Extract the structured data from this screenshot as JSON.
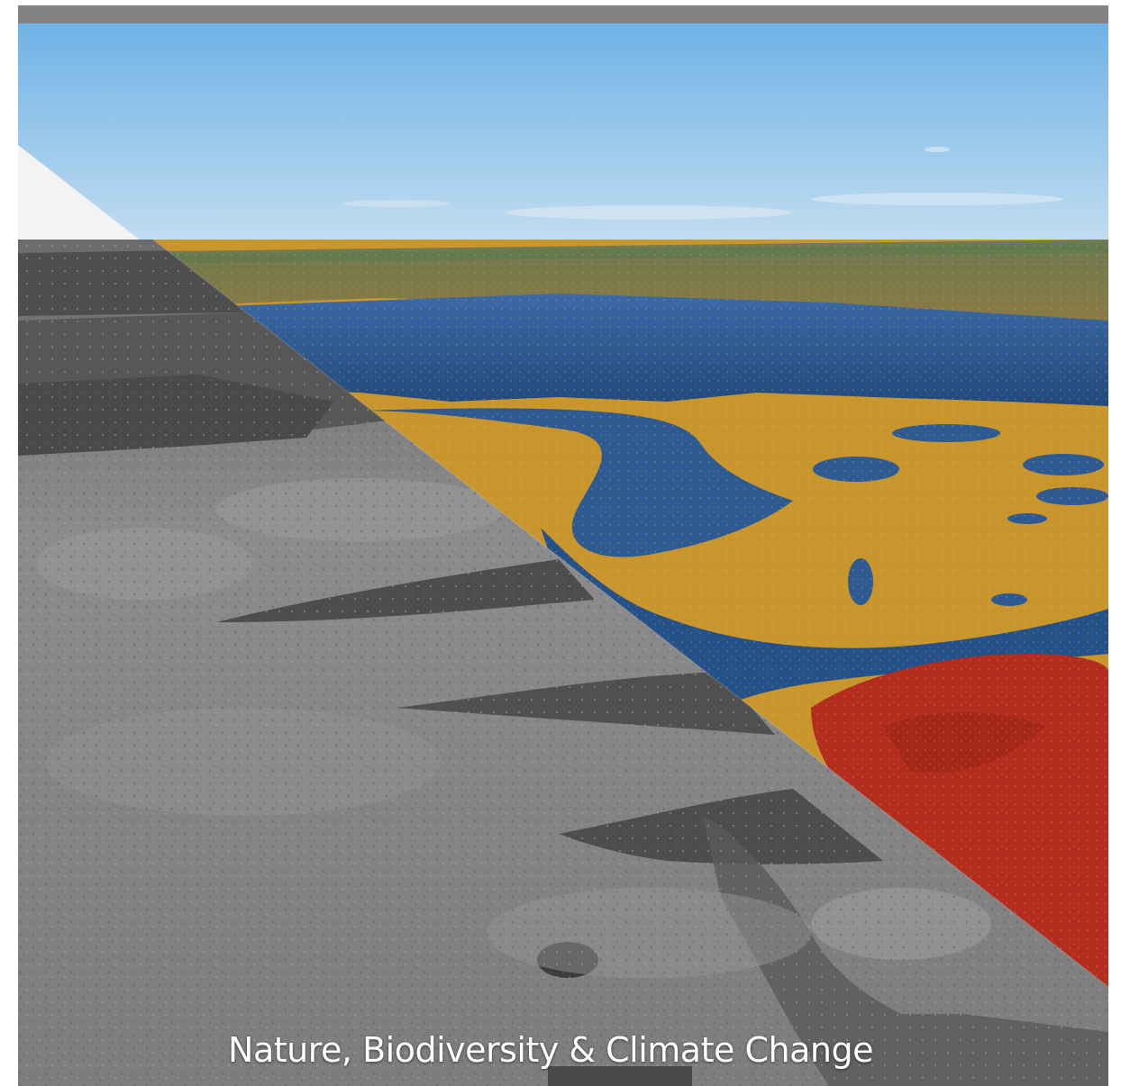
{
  "cover": {
    "caption": "Nature, Biodiversity & Climate Change"
  },
  "photo": {
    "subject": "aerial-marsh-landscape",
    "left_treatment": "grayscale",
    "right_treatment": "color"
  },
  "colors": {
    "top_bar": "#838285",
    "sky_top": "#6fb2e6",
    "sky_bottom": "#c4def0",
    "water": "#2d5a93",
    "marsh_gold": "#c9962e",
    "marsh_red": "#b32c1e",
    "caption_text": "#ffffff"
  }
}
